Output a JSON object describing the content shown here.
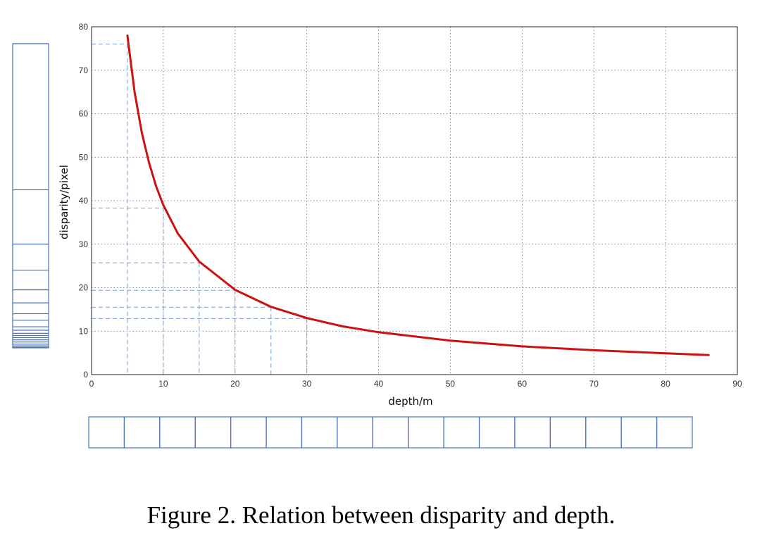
{
  "chart_data": {
    "type": "line",
    "title": "",
    "xlabel": "depth/m",
    "ylabel": "disparity/pixel",
    "xlim": [
      0,
      90
    ],
    "ylim": [
      0,
      80
    ],
    "xticks": [
      "0",
      "10",
      "20",
      "30",
      "40",
      "50",
      "60",
      "70",
      "80",
      "90"
    ],
    "yticks": [
      "0",
      "10",
      "20",
      "30",
      "40",
      "50",
      "60",
      "70",
      "80"
    ],
    "grid": true,
    "series": [
      {
        "color": "#cc1111",
        "x": [
          5,
          6,
          7,
          8,
          9,
          10,
          12,
          15,
          20,
          25,
          30,
          35,
          40,
          50,
          60,
          70,
          80,
          86
        ],
        "y": [
          78,
          65,
          55.7,
          48.8,
          43.3,
          39,
          32.5,
          26,
          19.5,
          15.6,
          13,
          11.1,
          9.75,
          7.8,
          6.5,
          5.6,
          4.9,
          4.5
        ]
      }
    ],
    "reference_points": [
      {
        "x": 5,
        "y": 76
      },
      {
        "x": 10,
        "y": 38.3
      },
      {
        "x": 15,
        "y": 25.7
      },
      {
        "x": 20,
        "y": 19.4
      },
      {
        "x": 25,
        "y": 15.5
      },
      {
        "x": 30,
        "y": 12.9
      }
    ],
    "reference_color": "#7a9fd4",
    "side_bar": {
      "color": "#4a72b8",
      "divisions_y": [
        80,
        42.5,
        30,
        24,
        19.5,
        16.5,
        14,
        12.5,
        11,
        10.2,
        9.5,
        9,
        8.5,
        8,
        7.5,
        7,
        6.6,
        6.3
      ]
    },
    "bottom_bar": {
      "color": "#4a72b8",
      "cells": 17
    }
  },
  "caption": "Figure 2. Relation between disparity and depth."
}
